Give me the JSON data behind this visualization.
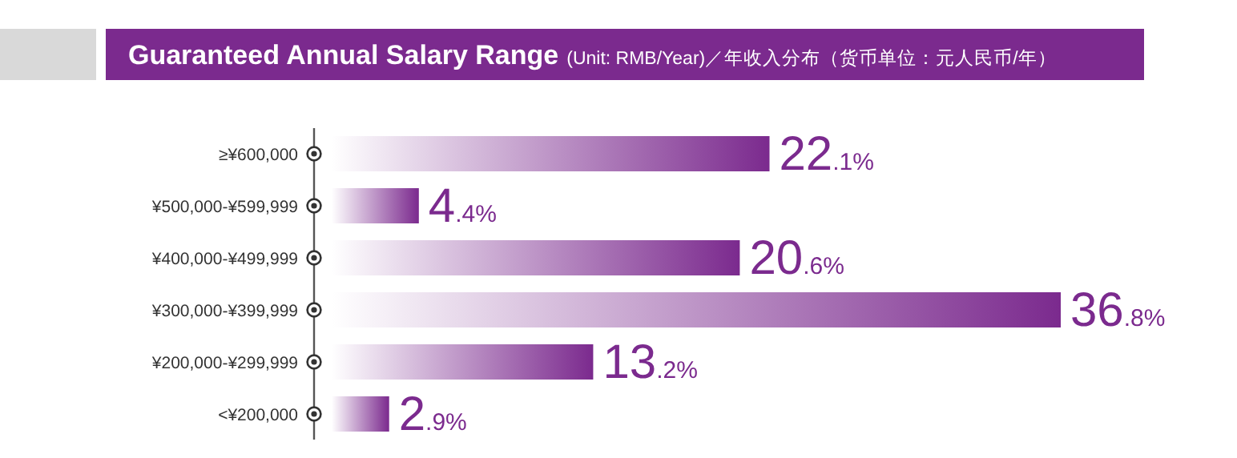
{
  "chart_data": {
    "type": "bar",
    "orientation": "horizontal",
    "title": "Guaranteed Annual Salary Range",
    "subtitle": "(Unit: RMB/Year)／年收入分布（货币单位：元人民币/年）",
    "categories": [
      "≥¥600,000",
      "¥500,000-¥599,999",
      "¥400,000-¥499,999",
      "¥300,000-¥399,999",
      "¥200,000-¥299,999",
      "<¥200,000"
    ],
    "values": [
      22.1,
      4.4,
      20.6,
      36.8,
      13.2,
      2.9
    ],
    "value_labels": [
      "22.1%",
      "4.4%",
      "20.6%",
      "36.8%",
      "13.2%",
      "2.9%"
    ],
    "color": "#7b2a8e"
  }
}
